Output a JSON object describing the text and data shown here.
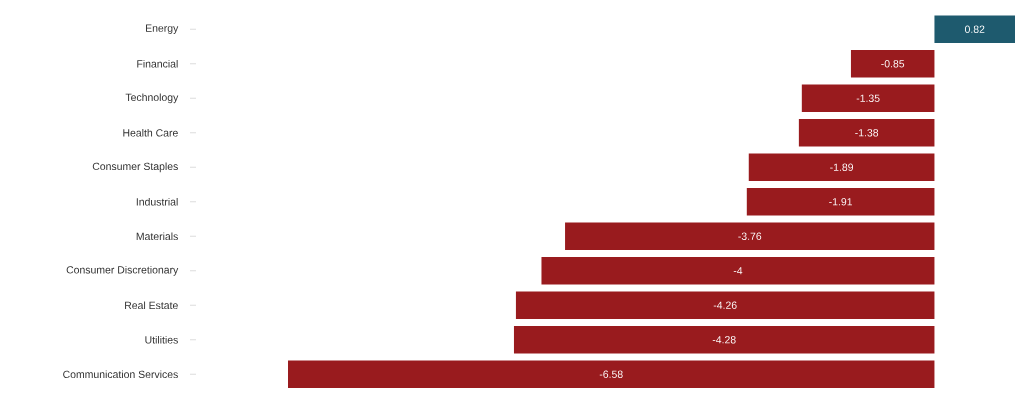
{
  "chart_data": {
    "type": "bar",
    "orientation": "horizontal",
    "data_labels": true,
    "grid": false,
    "categories": [
      "Energy",
      "Financial",
      "Technology",
      "Health Care",
      "Consumer Staples",
      "Industrial",
      "Materials",
      "Consumer Discretionary",
      "Real Estate",
      "Utilities",
      "Communication Services"
    ],
    "values": [
      0.82,
      -0.85,
      -1.35,
      -1.38,
      -1.89,
      -1.91,
      -3.76,
      -4,
      -4.26,
      -4.28,
      -6.58
    ],
    "colors": [
      "#1e5a6e",
      "#991b1e",
      "#991b1e",
      "#991b1e",
      "#991b1e",
      "#991b1e",
      "#991b1e",
      "#991b1e",
      "#991b1e",
      "#991b1e",
      "#991b1e"
    ],
    "tick_labels": "y"
  }
}
